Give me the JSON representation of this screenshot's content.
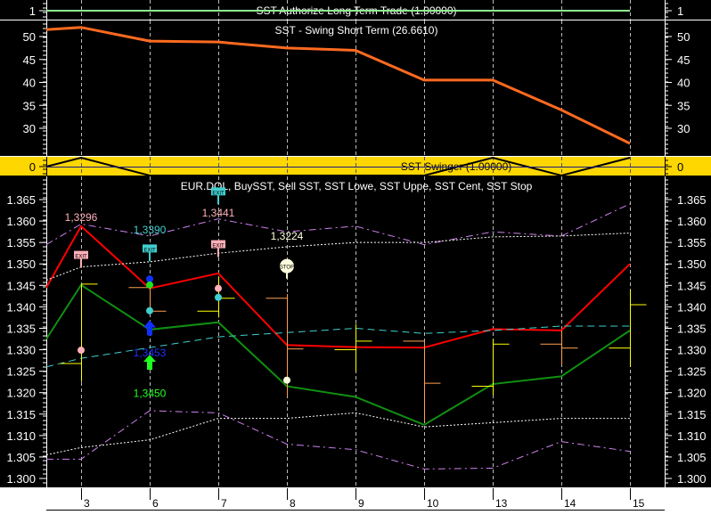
{
  "chart_data": [
    {
      "type": "line",
      "title": "SST Authorize Long Term Trade (1.00000)",
      "ylim": [
        0.5,
        1.5
      ],
      "yticks": [
        "1"
      ],
      "series": [
        {
          "values": [
            1,
            1,
            1,
            1,
            1,
            1,
            1,
            1,
            1
          ],
          "color": "#90ee90"
        }
      ]
    },
    {
      "type": "line",
      "title": "SST - Swing Short Term (26.6610)",
      "ylim": [
        25,
        53.5
      ],
      "yticks": [
        "50",
        "45",
        "40",
        "35",
        "30"
      ],
      "series": [
        {
          "values": [
            52.0,
            49.0,
            48.8,
            47.5,
            47.0,
            40.5,
            40.5,
            34.0,
            26.7
          ],
          "color": "#ff6a20"
        }
      ]
    },
    {
      "type": "line",
      "title": "SST Swinger (1.00000)",
      "ylim": [
        -1,
        1
      ],
      "yticks": [
        "0"
      ],
      "background": "#ffd700",
      "series": [
        {
          "values": [
            1,
            -1,
            -1,
            -1,
            -1,
            -1,
            1,
            -1,
            1
          ],
          "color": "#000000"
        }
      ]
    },
    {
      "type": "candlestick",
      "title": "EUR.DOL, BuySST, Sell SST, SST Lowe, SST Uppe, SST Cent, SST Stop",
      "x": [
        "3",
        "6",
        "7",
        "8",
        "9",
        "10",
        "13",
        "14",
        "15"
      ],
      "ylim": [
        1.2965,
        1.3695
      ],
      "yticks": [
        "1.365",
        "1.360",
        "1.355",
        "1.350",
        "1.345",
        "1.340",
        "1.335",
        "1.330",
        "1.325",
        "1.320",
        "1.315",
        "1.310",
        "1.305",
        "1.300"
      ],
      "ohlc": [
        {
          "o": 1.3268,
          "h": 1.3453,
          "l": 1.3225,
          "c": 1.3453,
          "color": "#ffff00"
        },
        {
          "o": 1.3445,
          "h": 1.3445,
          "l": 1.339,
          "c": 1.339,
          "color": "#ffa050"
        },
        {
          "o": 1.339,
          "h": 1.347,
          "l": 1.3375,
          "c": 1.342,
          "color": "#ffff00"
        },
        {
          "o": 1.342,
          "h": 1.343,
          "l": 1.319,
          "c": 1.3302,
          "color": "#ffa050"
        },
        {
          "o": 1.33,
          "h": 1.336,
          "l": 1.325,
          "c": 1.332,
          "color": "#ffff00"
        },
        {
          "o": 1.332,
          "h": 1.332,
          "l": 1.313,
          "c": 1.3222,
          "color": "#ffa050"
        },
        {
          "o": 1.3215,
          "h": 1.3325,
          "l": 1.3195,
          "c": 1.3313,
          "color": "#ffff00"
        },
        {
          "o": 1.3313,
          "h": 1.3345,
          "l": 1.3265,
          "c": 1.3304,
          "color": "#ffa050"
        },
        {
          "o": 1.3304,
          "h": 1.344,
          "l": 1.326,
          "c": 1.3405,
          "color": "#ffff00"
        }
      ],
      "series": [
        {
          "start": 1.3445,
          "values": [
            1.3588,
            1.3443,
            1.3478,
            1.3311,
            1.3306,
            1.3305,
            1.3348,
            1.3345,
            1.35
          ],
          "color": "#ff0000",
          "style": "solid"
        },
        {
          "start": 1.3325,
          "values": [
            1.3451,
            1.3347,
            1.3364,
            1.3215,
            1.319,
            1.3125,
            1.322,
            1.3238,
            1.3345
          ],
          "color": "#109010",
          "style": "solid"
        },
        {
          "start": 1.3545,
          "values": [
            1.3593,
            1.3565,
            1.3605,
            1.3575,
            1.3588,
            1.3545,
            1.3575,
            1.3565,
            1.364
          ],
          "color": "#d080f0",
          "style": "dashdot"
        },
        {
          "start": 1.3045,
          "values": [
            1.3045,
            1.3158,
            1.3153,
            1.308,
            1.3067,
            1.3022,
            1.3024,
            1.3086,
            1.3063
          ],
          "color": "#d080f0",
          "style": "dashdot"
        },
        {
          "start": 1.3462,
          "values": [
            1.3493,
            1.3505,
            1.3525,
            1.354,
            1.355,
            1.355,
            1.3563,
            1.3565,
            1.3572
          ],
          "color": "#ffffff",
          "style": "dotted"
        },
        {
          "start": 1.3055,
          "values": [
            1.3072,
            1.309,
            1.314,
            1.314,
            1.3153,
            1.312,
            1.313,
            1.314,
            1.314
          ],
          "color": "#ffffff",
          "style": "dotted"
        },
        {
          "start": 1.326,
          "values": [
            1.328,
            1.3305,
            1.333,
            1.334,
            1.335,
            1.3338,
            1.3345,
            1.3355,
            1.3355
          ],
          "color": "#40d0d0",
          "style": "dashed"
        }
      ],
      "annotations": [
        {
          "text": "1,3296",
          "x": "3",
          "y": 1.3611,
          "color": "#ffb0b8"
        },
        {
          "text": "1,3390",
          "x": "6",
          "y": 1.3581,
          "color": "#40d0d0"
        },
        {
          "text": "1,3441",
          "x": "7",
          "y": 1.3621,
          "color": "#ffb0b8"
        },
        {
          "text": "1,3224",
          "x": "8",
          "y": 1.3567,
          "color": "#ffffe0"
        },
        {
          "text": "1,3453",
          "x": "6",
          "y": 1.3295,
          "color": "#2030ff"
        },
        {
          "text": "1,3450",
          "x": "6",
          "y": 1.32,
          "color": "#20ff20"
        }
      ],
      "signs": [
        {
          "label": "EXIT",
          "x": "3",
          "y": 1.352,
          "color": "#ffb0b8"
        },
        {
          "label": "EXIT",
          "x": "6",
          "y": 1.3535,
          "color": "#40d0d0"
        },
        {
          "label": "EXIT",
          "x": "7",
          "y": 1.3668,
          "color": "#40d0d0"
        },
        {
          "label": "EXIT",
          "x": "7",
          "y": 1.3545,
          "color": "#ffb0b8"
        },
        {
          "label": "STOP",
          "x": "8",
          "y": 1.3495,
          "color": "#ffffe0"
        }
      ],
      "dots": [
        {
          "x": "3",
          "y": 1.3299,
          "color": "#ffb0b8"
        },
        {
          "x": "6",
          "y": 1.3465,
          "color": "#1030ff"
        },
        {
          "x": "6",
          "y": 1.3451,
          "color": "#20e020"
        },
        {
          "x": "6",
          "y": 1.3391,
          "color": "#40d0d0"
        },
        {
          "x": "7",
          "y": 1.3443,
          "color": "#ffb0b8"
        },
        {
          "x": "7",
          "y": 1.3422,
          "color": "#40d0d0"
        },
        {
          "x": "8",
          "y": 1.3229,
          "color": "#ffffe0"
        }
      ],
      "arrows": [
        {
          "x": "6",
          "y": 1.335,
          "color": "#1030ff"
        },
        {
          "x": "6",
          "y": 1.327,
          "color": "#20ff20"
        }
      ]
    }
  ]
}
